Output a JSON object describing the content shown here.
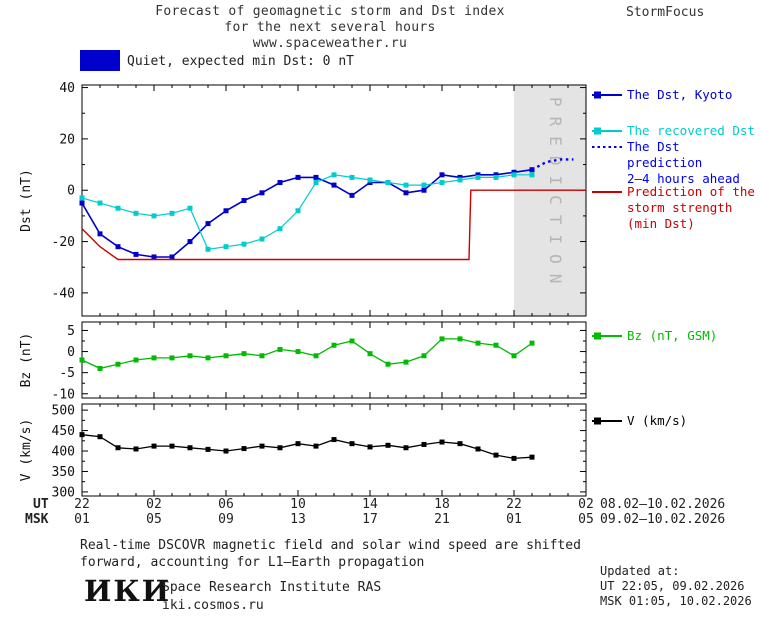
{
  "header": {
    "title_line1": "Forecast of geomagnetic storm and Dst index",
    "title_line2": "for the next several hours",
    "title_line3": "www.spaceweather.ru",
    "brand": "StormFocus"
  },
  "status_banner": {
    "label": "Quiet, expected min Dst: 0 nT",
    "swatch_color": "#0000cc"
  },
  "legend": {
    "items": [
      {
        "id": "dst-kyoto",
        "lines": [
          "The Dst, Kyoto"
        ],
        "color": "#0000cc",
        "swatch": "line-square"
      },
      {
        "id": "recovered-dst",
        "lines": [
          "The recovered Dst"
        ],
        "color": "#00cccc",
        "swatch": "line-square"
      },
      {
        "id": "dst-prediction",
        "lines": [
          "The Dst prediction",
          "2–4 hours ahead"
        ],
        "color": "#0000ee",
        "swatch": "dotted-line"
      },
      {
        "id": "storm-strength",
        "lines": [
          "Prediction of the",
          "storm strength",
          "(min Dst)"
        ],
        "color": "#cc0000",
        "swatch": "line"
      },
      {
        "id": "bz",
        "lines": [
          "Bz (nT, GSM)"
        ],
        "color": "#00bb00",
        "swatch": "line-square"
      },
      {
        "id": "v",
        "lines": [
          "V (km/s)"
        ],
        "color": "#000000",
        "swatch": "line-square"
      }
    ]
  },
  "axis": {
    "ut_label": "UT",
    "msk_label": "MSK",
    "date_ut": "08.02–10.02.2026",
    "date_msk": "09.02–10.02.2026"
  },
  "footnote": {
    "line1": "Real-time DSCOVR magnetic field and solar wind speed are shifted",
    "line2": "forward, accounting for L1–Earth propagation"
  },
  "updated": {
    "label": "Updated at:",
    "ut": "UT  22:05, 09.02.2026",
    "msk": "MSK 01:05, 10.02.2026"
  },
  "footer": {
    "logo": "ИКИ",
    "institute": "Space Research Institute RAS",
    "site": "iki.cosmos.ru"
  },
  "chart_data": {
    "type": "line",
    "title": "Forecast of geomagnetic storm and Dst index for the next several hours",
    "x_unit": "hours since 22:00 UT 08.02.2026",
    "xlim": [
      0,
      28
    ],
    "x_tick_hours": [
      0,
      4,
      8,
      12,
      16,
      20,
      24,
      28
    ],
    "x_ticks_ut": [
      "22",
      "02",
      "06",
      "10",
      "14",
      "18",
      "22",
      "02"
    ],
    "x_ticks_msk": [
      "01",
      "05",
      "09",
      "13",
      "17",
      "21",
      "01",
      "05"
    ],
    "prediction_band_hours": [
      24,
      28
    ],
    "prediction_label": "PREDICTION",
    "grid": false,
    "legend_position": "right",
    "panels": [
      {
        "ylabel": "Dst (nT)",
        "ylim": [
          -49,
          41
        ],
        "yticks": [
          40,
          20,
          0,
          -20,
          -40
        ],
        "series": [
          {
            "name": "The Dst, Kyoto",
            "color": "#0000cc",
            "marker": "square",
            "style": "solid",
            "lw": 1.6,
            "x": [
              0,
              1,
              2,
              3,
              4,
              5,
              6,
              7,
              8,
              9,
              10,
              11,
              12,
              13,
              14,
              15,
              16,
              17,
              18,
              19,
              20,
              21,
              22,
              23,
              24,
              25
            ],
            "y": [
              -5,
              -17,
              -22,
              -25,
              -26,
              -26,
              -20,
              -13,
              -8,
              -4,
              -1,
              3,
              5,
              5,
              2,
              -2,
              3,
              3,
              -1,
              0,
              6,
              5,
              6,
              6,
              7,
              8
            ]
          },
          {
            "name": "The recovered Dst",
            "color": "#00cccc",
            "marker": "square",
            "style": "solid",
            "lw": 1.2,
            "x": [
              0,
              1,
              2,
              3,
              4,
              5,
              6,
              7,
              8,
              9,
              10,
              11,
              12,
              13,
              14,
              15,
              16,
              17,
              18,
              19,
              20,
              21,
              22,
              23,
              24,
              25
            ],
            "y": [
              -3,
              -5,
              -7,
              -9,
              -10,
              -9,
              -7,
              -23,
              -22,
              -21,
              -19,
              -15,
              -8,
              3,
              6,
              5,
              4,
              3,
              2,
              2,
              3,
              4,
              5,
              5,
              6,
              6
            ]
          },
          {
            "name": "The Dst prediction 2-4 hours ahead",
            "color": "#0000ee",
            "marker": "none",
            "style": "dotted",
            "lw": 2.4,
            "x": [
              25,
              25.8,
              26.6,
              27.3
            ],
            "y": [
              8,
              11,
              12,
              12
            ]
          },
          {
            "name": "Prediction of the storm strength (min Dst)",
            "color": "#cc0000",
            "marker": "none",
            "style": "solid",
            "lw": 1.4,
            "x": [
              0,
              1,
              2,
              21.5,
              21.6,
              28
            ],
            "y": [
              -15,
              -22,
              -27,
              -27,
              0,
              0
            ]
          }
        ]
      },
      {
        "ylabel": "Bz (nT)",
        "ylim": [
          -11,
          7
        ],
        "yticks": [
          5,
          0,
          -5,
          -10
        ],
        "series": [
          {
            "name": "Bz (nT, GSM)",
            "color": "#00bb00",
            "marker": "square",
            "style": "solid",
            "lw": 1.3,
            "x": [
              0,
              1,
              2,
              3,
              4,
              5,
              6,
              7,
              8,
              9,
              10,
              11,
              12,
              13,
              14,
              15,
              16,
              17,
              18,
              19,
              20,
              21,
              22,
              23,
              24,
              25
            ],
            "y": [
              -2,
              -4,
              -3,
              -2,
              -1.5,
              -1.5,
              -1,
              -1.5,
              -1,
              -0.5,
              -1,
              0.5,
              0,
              -1,
              1.5,
              2.5,
              -0.5,
              -3,
              -2.5,
              -1,
              3,
              3,
              2,
              1.5,
              -1,
              2
            ]
          }
        ]
      },
      {
        "ylabel": "V (km/s)",
        "ylim": [
          290,
          515
        ],
        "yticks": [
          500,
          450,
          400,
          350,
          300
        ],
        "series": [
          {
            "name": "V (km/s)",
            "color": "#000000",
            "marker": "square",
            "style": "solid",
            "lw": 1.3,
            "x": [
              0,
              1,
              2,
              3,
              4,
              5,
              6,
              7,
              8,
              9,
              10,
              11,
              12,
              13,
              14,
              15,
              16,
              17,
              18,
              19,
              20,
              21,
              22,
              23,
              24,
              25
            ],
            "y": [
              440,
              435,
              408,
              405,
              412,
              412,
              408,
              404,
              400,
              406,
              412,
              408,
              418,
              412,
              428,
              418,
              410,
              414,
              408,
              416,
              422,
              418,
              405,
              390,
              382,
              385
            ]
          }
        ]
      }
    ]
  }
}
